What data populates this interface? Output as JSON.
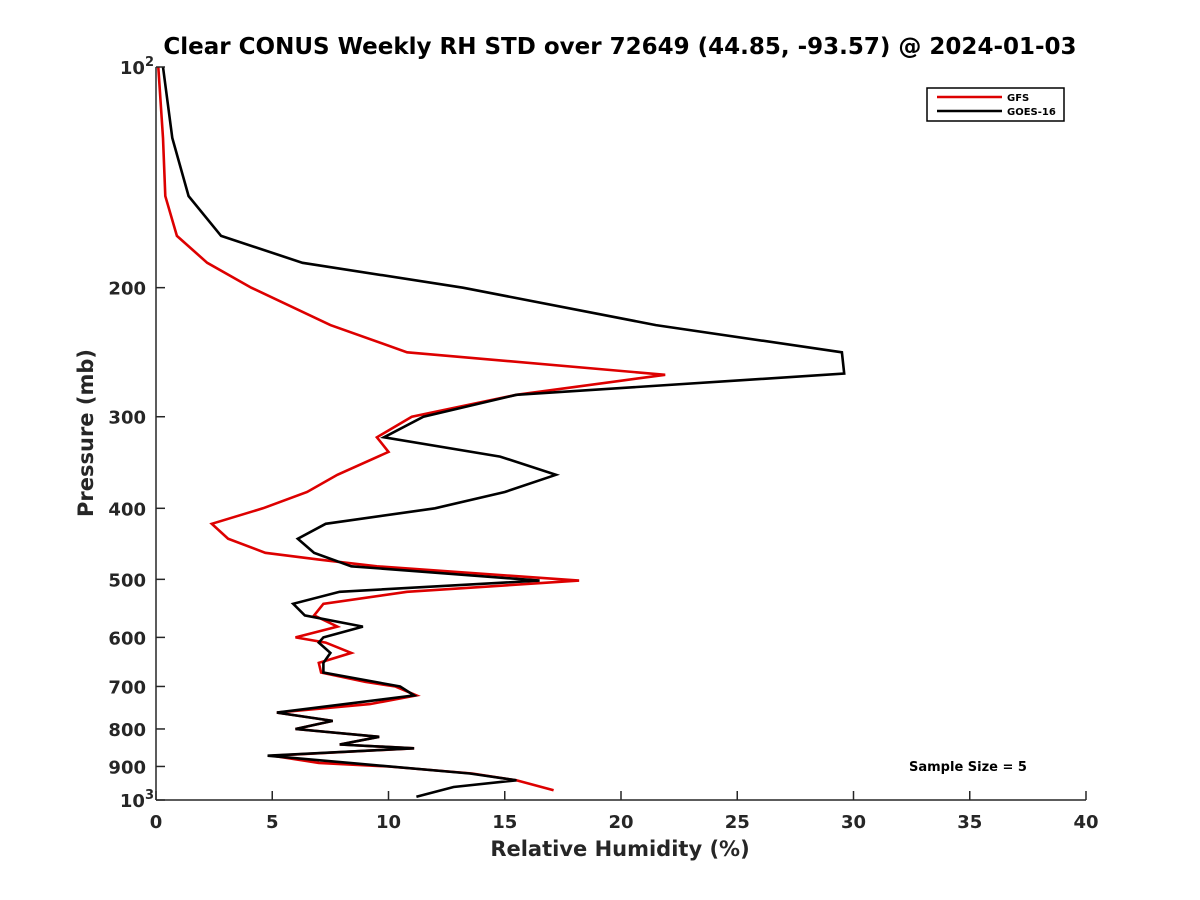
{
  "chart_data": {
    "type": "line",
    "title": "Clear CONUS Weekly RH STD over 72649 (44.85, -93.57) @ 2024-01-03",
    "xlabel": "Relative Humidity (%)",
    "ylabel": "Pressure (mb)",
    "xlim": [
      0,
      40
    ],
    "ylim": [
      100,
      1000
    ],
    "y_scale": "log",
    "y_reversed": true,
    "x_ticks": [
      "0",
      "5",
      "10",
      "15",
      "20",
      "25",
      "30",
      "35",
      "40"
    ],
    "y_ticks": [
      {
        "value": 100,
        "label": "10",
        "sup": "2"
      },
      {
        "value": 200,
        "label": "200"
      },
      {
        "value": 300,
        "label": "300"
      },
      {
        "value": 400,
        "label": "400"
      },
      {
        "value": 500,
        "label": "500"
      },
      {
        "value": 600,
        "label": "600"
      },
      {
        "value": 700,
        "label": "700"
      },
      {
        "value": 800,
        "label": "800"
      },
      {
        "value": 900,
        "label": "900"
      },
      {
        "value": 1000,
        "label": "10",
        "sup": "3"
      }
    ],
    "grid": false,
    "legend_position": "top-right",
    "annotation": "Sample Size = 5",
    "series": [
      {
        "name": "GFS",
        "color": "#dd0000",
        "points": [
          [
            0.1,
            100
          ],
          [
            0.3,
            125
          ],
          [
            0.4,
            150
          ],
          [
            0.9,
            170
          ],
          [
            2.2,
            185
          ],
          [
            4.1,
            200
          ],
          [
            7.5,
            225
          ],
          [
            10.8,
            245
          ],
          [
            21.9,
            263
          ],
          [
            15.5,
            280
          ],
          [
            11.0,
            300
          ],
          [
            9.5,
            320
          ],
          [
            10.0,
            335
          ],
          [
            7.8,
            360
          ],
          [
            6.5,
            380
          ],
          [
            4.6,
            400
          ],
          [
            2.4,
            420
          ],
          [
            3.1,
            440
          ],
          [
            4.7,
            460
          ],
          [
            7.0,
            470
          ],
          [
            9.5,
            480
          ],
          [
            18.2,
            502
          ],
          [
            10.8,
            520
          ],
          [
            7.2,
            540
          ],
          [
            6.8,
            560
          ],
          [
            7.8,
            580
          ],
          [
            6.0,
            600
          ],
          [
            7.3,
            610
          ],
          [
            8.4,
            630
          ],
          [
            7.0,
            650
          ],
          [
            7.1,
            670
          ],
          [
            9.0,
            690
          ],
          [
            10.3,
            700
          ],
          [
            11.2,
            720
          ],
          [
            9.2,
            740
          ],
          [
            5.2,
            760
          ],
          [
            7.6,
            780
          ],
          [
            6.0,
            800
          ],
          [
            9.6,
            820
          ],
          [
            7.9,
            840
          ],
          [
            11.1,
            850
          ],
          [
            5.0,
            870
          ],
          [
            7.0,
            890
          ],
          [
            10.0,
            900
          ],
          [
            13.6,
            920
          ],
          [
            15.5,
            940
          ],
          [
            17.1,
            970
          ]
        ]
      },
      {
        "name": "GOES-16",
        "color": "#000000",
        "points": [
          [
            0.3,
            100
          ],
          [
            0.7,
            125
          ],
          [
            1.4,
            150
          ],
          [
            2.8,
            170
          ],
          [
            6.3,
            185
          ],
          [
            13.2,
            200
          ],
          [
            21.5,
            225
          ],
          [
            29.5,
            245
          ],
          [
            29.6,
            262
          ],
          [
            15.5,
            280
          ],
          [
            11.5,
            300
          ],
          [
            9.8,
            320
          ],
          [
            14.8,
            340
          ],
          [
            17.2,
            360
          ],
          [
            15.0,
            380
          ],
          [
            12.0,
            400
          ],
          [
            7.3,
            420
          ],
          [
            6.1,
            440
          ],
          [
            6.8,
            460
          ],
          [
            8.4,
            480
          ],
          [
            16.5,
            502
          ],
          [
            7.9,
            520
          ],
          [
            5.9,
            540
          ],
          [
            6.4,
            560
          ],
          [
            8.9,
            580
          ],
          [
            7.2,
            600
          ],
          [
            7.0,
            610
          ],
          [
            7.5,
            630
          ],
          [
            7.2,
            650
          ],
          [
            7.2,
            670
          ],
          [
            10.5,
            700
          ],
          [
            11.1,
            720
          ],
          [
            5.2,
            760
          ],
          [
            7.6,
            780
          ],
          [
            6.0,
            800
          ],
          [
            9.6,
            820
          ],
          [
            7.9,
            840
          ],
          [
            11.1,
            850
          ],
          [
            4.8,
            870
          ],
          [
            13.5,
            920
          ],
          [
            15.5,
            940
          ],
          [
            12.8,
            960
          ],
          [
            11.2,
            990
          ]
        ]
      }
    ]
  }
}
